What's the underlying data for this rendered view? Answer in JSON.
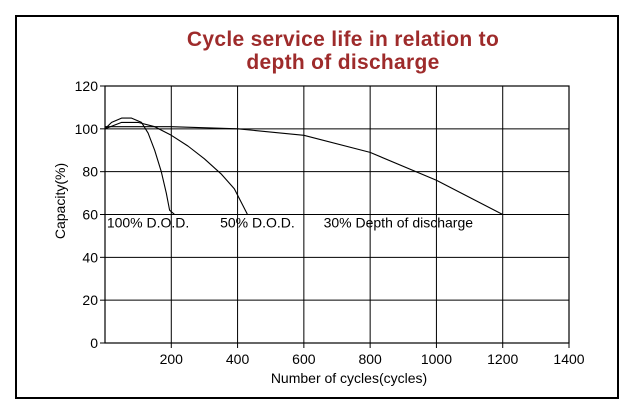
{
  "chart_data": {
    "type": "line",
    "title": [
      "Cycle service life in relation to",
      "depth of discharge"
    ],
    "xlabel": "Number of cycles(cycles)",
    "ylabel": "Capacity(%)",
    "xlim": [
      0,
      1400
    ],
    "ylim": [
      0,
      120
    ],
    "xticks": [
      200,
      400,
      600,
      800,
      1000,
      1200,
      1400
    ],
    "yticks": [
      0,
      20,
      40,
      60,
      80,
      100,
      120
    ],
    "grid": true,
    "colors": {
      "title": "#9e2b2b",
      "line": "#000000",
      "grid": "#000000"
    },
    "series": [
      {
        "name": "100% D.O.D.",
        "x": [
          0,
          20,
          50,
          80,
          110,
          130,
          150,
          170,
          185,
          195,
          210
        ],
        "y": [
          100,
          103,
          105,
          105,
          103,
          98,
          90,
          80,
          70,
          62,
          60
        ]
      },
      {
        "name": "50% D.O.D.",
        "x": [
          0,
          50,
          100,
          150,
          200,
          250,
          300,
          350,
          390,
          410,
          430
        ],
        "y": [
          100,
          103,
          103,
          101,
          97,
          92,
          86,
          79,
          72,
          66,
          60
        ]
      },
      {
        "name": "30% Depth of discharge",
        "x": [
          0,
          200,
          400,
          600,
          800,
          1000,
          1200
        ],
        "y": [
          101,
          101,
          100,
          97,
          89,
          76,
          60
        ]
      }
    ],
    "annotations": [
      {
        "text": "100% D.O.D.",
        "x": 130,
        "y": 54
      },
      {
        "text": "50% D.O.D.",
        "x": 460,
        "y": 54
      },
      {
        "text": "30% Depth of discharge",
        "x": 885,
        "y": 54
      }
    ]
  }
}
